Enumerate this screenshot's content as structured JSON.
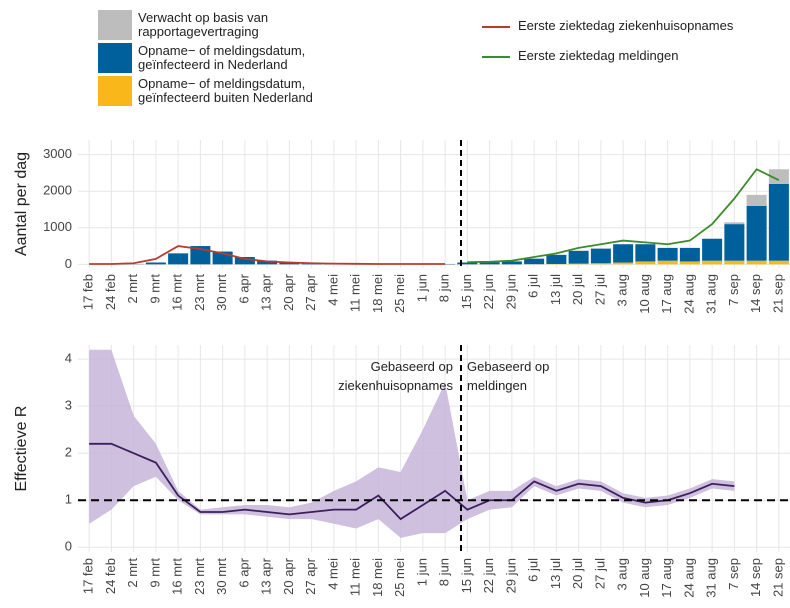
{
  "chart_data": [
    {
      "type": "bar",
      "y_label": "Aantal per dag",
      "categories": [
        "17 feb",
        "24 feb",
        "2 mrt",
        "9 mrt",
        "16 mrt",
        "23 mrt",
        "30 mrt",
        "6 apr",
        "13 apr",
        "20 apr",
        "27 apr",
        "4 mei",
        "11 mei",
        "18 mei",
        "25 mei",
        "1 jun",
        "8 jun",
        "15 jun",
        "22 jun",
        "29 jun",
        "6 jul",
        "13 jul",
        "20 jul",
        "27 jul",
        "3 aug",
        "10 aug",
        "17 aug",
        "24 aug",
        "31 aug",
        "7 sep",
        "14 sep",
        "21 sep"
      ],
      "series": [
        {
          "name": "Verwacht op basis van rapportagevertraging",
          "color": "#bdbdbd",
          "values": [
            0,
            0,
            0,
            0,
            0,
            0,
            0,
            0,
            0,
            0,
            0,
            0,
            0,
            0,
            0,
            0,
            0,
            0,
            0,
            0,
            0,
            0,
            0,
            0,
            0,
            0,
            0,
            0,
            0,
            50,
            300,
            400
          ]
        },
        {
          "name": "Opname− of meldingsdatum, geïnfecteerd in Nederland",
          "color": "#00609c",
          "values": [
            0,
            0,
            5,
            50,
            300,
            500,
            350,
            200,
            100,
            50,
            20,
            10,
            10,
            10,
            10,
            10,
            10,
            50,
            60,
            80,
            150,
            250,
            350,
            400,
            500,
            470,
            350,
            370,
            600,
            1000,
            1500,
            2100
          ]
        },
        {
          "name": "Opname− of meldingsdatum, geïnfecteerd buiten Nederland",
          "color": "#f9b719",
          "values": [
            0,
            0,
            0,
            0,
            0,
            0,
            0,
            0,
            0,
            0,
            0,
            0,
            0,
            0,
            0,
            0,
            0,
            0,
            0,
            0,
            5,
            10,
            20,
            30,
            50,
            80,
            100,
            80,
            100,
            100,
            100,
            100
          ]
        },
        {
          "name": "Eerste ziektedag ziekenhuisopnames",
          "color": "#b83c2b",
          "type": "line",
          "values": [
            10,
            10,
            30,
            150,
            500,
            420,
            300,
            150,
            80,
            50,
            30,
            20,
            15,
            10,
            10,
            10,
            10,
            null,
            null,
            null,
            null,
            null,
            null,
            null,
            null,
            null,
            null,
            null,
            null,
            null,
            null,
            null
          ]
        },
        {
          "name": "Eerste ziektedag meldingen",
          "color": "#3c8c2b",
          "type": "line",
          "values": [
            null,
            null,
            null,
            null,
            null,
            null,
            null,
            null,
            null,
            null,
            null,
            null,
            null,
            null,
            null,
            null,
            null,
            60,
            70,
            100,
            200,
            300,
            450,
            550,
            650,
            600,
            550,
            650,
            1100,
            1800,
            2600,
            2300
          ]
        }
      ],
      "ylim": [
        -100,
        3400
      ],
      "yticks": [
        0,
        1000,
        2000,
        3000
      ],
      "grid": true
    },
    {
      "type": "line",
      "y_label": "Effectieve R",
      "annotations": [
        "Gebaseerd op ziekenhuisopnames",
        "Gebaseerd op meldingen"
      ],
      "categories": [
        "17 feb",
        "24 feb",
        "2 mrt",
        "9 mrt",
        "16 mrt",
        "23 mrt",
        "30 mrt",
        "6 apr",
        "13 apr",
        "20 apr",
        "27 apr",
        "4 mei",
        "11 mei",
        "18 mei",
        "25 mei",
        "1 jun",
        "8 jun",
        "15 jun",
        "22 jun",
        "29 jun",
        "6 jul",
        "13 jul",
        "20 jul",
        "27 jul",
        "3 aug",
        "10 aug",
        "17 aug",
        "24 aug",
        "31 aug",
        "7 sep",
        "14 sep",
        "21 sep"
      ],
      "series": [
        {
          "color": "#3d1f5c",
          "band_color": "#c7b5d9",
          "values": [
            2.2,
            2.2,
            2.0,
            1.8,
            1.1,
            0.75,
            0.75,
            0.8,
            0.75,
            0.7,
            0.75,
            0.8,
            0.8,
            1.1,
            0.6,
            0.9,
            1.2,
            0.8,
            1.0,
            1.0,
            1.4,
            1.2,
            1.35,
            1.3,
            1.05,
            0.95,
            1.0,
            1.15,
            1.35,
            1.3,
            null,
            null
          ],
          "lower": [
            0.5,
            0.8,
            1.3,
            1.5,
            1.0,
            0.7,
            0.7,
            0.7,
            0.65,
            0.6,
            0.6,
            0.5,
            0.4,
            0.6,
            0.2,
            0.3,
            0.3,
            0.6,
            0.8,
            0.85,
            1.3,
            1.1,
            1.25,
            1.2,
            0.95,
            0.85,
            0.9,
            1.05,
            1.25,
            1.2,
            null,
            null
          ],
          "upper": [
            4.2,
            4.2,
            2.8,
            2.2,
            1.2,
            0.8,
            0.85,
            0.9,
            0.9,
            0.85,
            0.95,
            1.2,
            1.4,
            1.7,
            1.6,
            2.5,
            3.5,
            1.0,
            1.2,
            1.2,
            1.5,
            1.3,
            1.45,
            1.4,
            1.15,
            1.05,
            1.1,
            1.25,
            1.45,
            1.4,
            null,
            null
          ]
        }
      ],
      "hline": 1,
      "ylim": [
        -0.1,
        4.3
      ],
      "yticks": [
        0,
        1,
        2,
        3,
        4
      ],
      "grid": true
    }
  ]
}
